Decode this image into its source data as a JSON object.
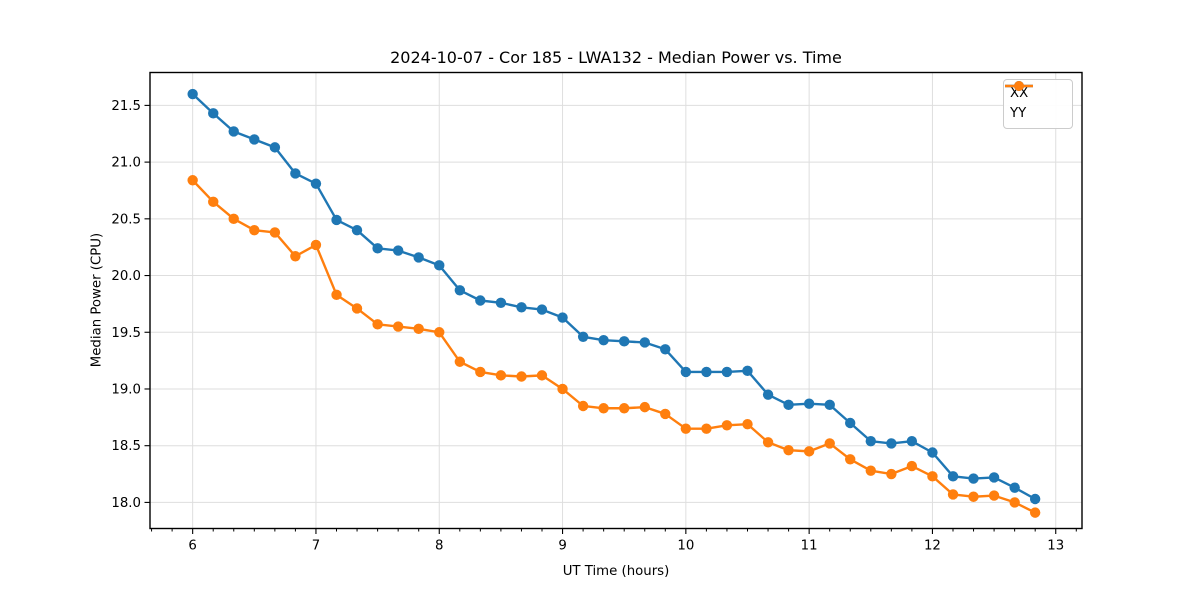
{
  "chart_data": {
    "type": "line",
    "title": "2024-10-07 - Cor 185 - LWA132 - Median Power vs. Time",
    "xlabel": "UT Time (hours)",
    "ylabel": "Median Power (CPU)",
    "xlim": [
      5.654,
      13.213
    ],
    "ylim": [
      17.77,
      21.79
    ],
    "x_ticks": [
      6,
      7,
      8,
      9,
      10,
      11,
      12,
      13
    ],
    "x_minor_tick_step_hours": 0.1667,
    "y_ticks": [
      18.0,
      18.5,
      19.0,
      19.5,
      20.0,
      20.5,
      21.0,
      21.5
    ],
    "grid": true,
    "grid_color": "#dedede",
    "legend_position": "upper right",
    "x": [
      6.0,
      6.167,
      6.333,
      6.5,
      6.667,
      6.833,
      7.0,
      7.167,
      7.333,
      7.5,
      7.667,
      7.833,
      8.0,
      8.167,
      8.333,
      8.5,
      8.667,
      8.833,
      9.0,
      9.167,
      9.333,
      9.5,
      9.667,
      9.833,
      10.0,
      10.167,
      10.333,
      10.5,
      10.667,
      10.833,
      11.0,
      11.167,
      11.333,
      11.5,
      11.667,
      11.833,
      12.0,
      12.167,
      12.333,
      12.5,
      12.667,
      12.833
    ],
    "series": [
      {
        "name": "XX",
        "color": "#1f77b4",
        "values": [
          21.6,
          21.43,
          21.27,
          21.2,
          21.13,
          20.9,
          20.81,
          20.49,
          20.4,
          20.24,
          20.22,
          20.16,
          20.09,
          19.87,
          19.78,
          19.76,
          19.72,
          19.7,
          19.63,
          19.46,
          19.43,
          19.42,
          19.41,
          19.35,
          19.15,
          19.15,
          19.15,
          19.16,
          18.95,
          18.86,
          18.87,
          18.86,
          18.7,
          18.54,
          18.52,
          18.54,
          18.44,
          18.23,
          18.21,
          18.22,
          18.13,
          18.03
        ]
      },
      {
        "name": "YY",
        "color": "#ff7f0e",
        "values": [
          20.84,
          20.65,
          20.5,
          20.4,
          20.38,
          20.17,
          20.27,
          19.83,
          19.71,
          19.57,
          19.55,
          19.53,
          19.5,
          19.24,
          19.15,
          19.12,
          19.11,
          19.12,
          19.0,
          18.85,
          18.83,
          18.83,
          18.84,
          18.78,
          18.65,
          18.65,
          18.68,
          18.69,
          18.53,
          18.46,
          18.45,
          18.52,
          18.38,
          18.28,
          18.25,
          18.32,
          18.23,
          18.07,
          18.05,
          18.06,
          18.0,
          17.91
        ]
      }
    ]
  }
}
